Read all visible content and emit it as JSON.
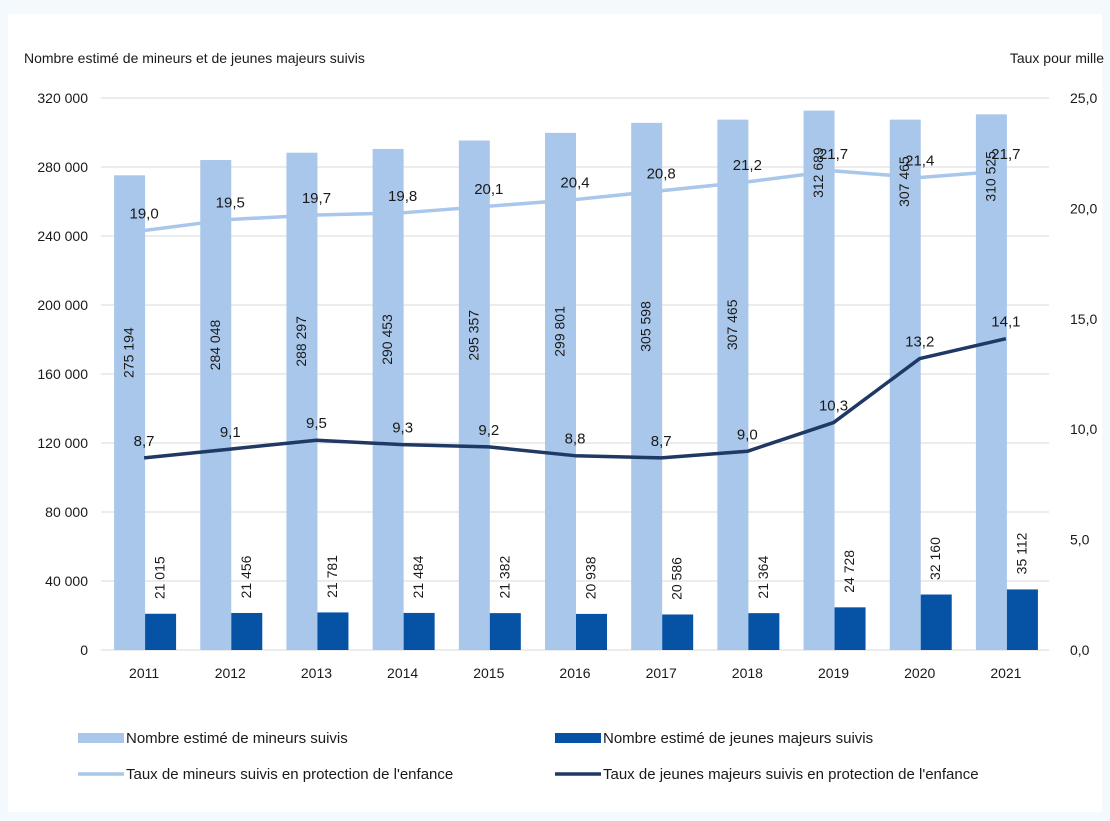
{
  "chart_data": {
    "type": "bar",
    "ylabel_left": "Nombre estimé de mineurs et de jeunes majeurs suivis",
    "ylabel_right": "Taux pour mille",
    "categories": [
      "2011",
      "2012",
      "2013",
      "2014",
      "2015",
      "2016",
      "2017",
      "2018",
      "2019",
      "2020",
      "2021"
    ],
    "ylim_left": [
      0,
      320000
    ],
    "yticks_left": [
      "0",
      "40 000",
      "80 000",
      "120 000",
      "160 000",
      "200 000",
      "240 000",
      "280 000",
      "320 000"
    ],
    "ylim_right": [
      0,
      25
    ],
    "yticks_right": [
      "0,0",
      "5,0",
      "10,0",
      "15,0",
      "20,0",
      "25,0"
    ],
    "grid": true,
    "legend_position": "bottom",
    "series": [
      {
        "name": "Nombre estimé de mineurs suivis",
        "kind": "bar",
        "axis": "left",
        "color": "#a9c7ea",
        "values": [
          275194,
          284048,
          288297,
          290453,
          295357,
          299801,
          305598,
          307465,
          312689,
          307465,
          310525
        ],
        "labels": [
          "275 194",
          "284 048",
          "288 297",
          "290 453",
          "295 357",
          "299 801",
          "305 598",
          "307 465",
          "312 689",
          "307 465",
          "310 525"
        ]
      },
      {
        "name": "Nombre estimé de jeunes majeurs suivis",
        "kind": "bar",
        "axis": "left",
        "color": "#0652a5",
        "values": [
          21015,
          21456,
          21781,
          21484,
          21382,
          20938,
          20586,
          21364,
          24728,
          32160,
          35112
        ],
        "labels": [
          "21 015",
          "21 456",
          "21 781",
          "21 484",
          "21 382",
          "20 938",
          "20 586",
          "21 364",
          "24 728",
          "32 160",
          "35 112"
        ]
      },
      {
        "name": "Taux de mineurs suivis en protection de l'enfance",
        "kind": "line",
        "axis": "right",
        "color": "#a9c7ea",
        "values": [
          19.0,
          19.5,
          19.7,
          19.8,
          20.1,
          20.4,
          20.8,
          21.2,
          21.7,
          21.4,
          21.7
        ],
        "labels": [
          "19,0",
          "19,5",
          "19,7",
          "19,8",
          "20,1",
          "20,4",
          "20,8",
          "21,2",
          "21,7",
          "21,4",
          "21,7"
        ]
      },
      {
        "name": "Taux de jeunes majeurs suivis en protection de l'enfance",
        "kind": "line",
        "axis": "right",
        "color": "#1f3864",
        "values": [
          8.7,
          9.1,
          9.5,
          9.3,
          9.2,
          8.8,
          8.7,
          9.0,
          10.3,
          13.2,
          14.1
        ],
        "labels": [
          "8,7",
          "9,1",
          "9,5",
          "9,3",
          "9,2",
          "8,8",
          "8,7",
          "9,0",
          "10,3",
          "13,2",
          "14,1"
        ]
      }
    ]
  }
}
